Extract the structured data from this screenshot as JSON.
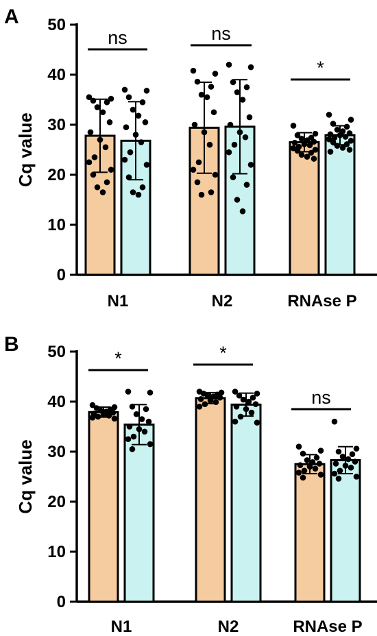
{
  "colors": {
    "group1": "#F5CBA0",
    "group2": "#C9F2F0",
    "ink": "#000000"
  },
  "chart_data": [
    {
      "type": "bar",
      "panel_label": "A",
      "ylabel": "Cq value",
      "ylim": [
        0,
        50
      ],
      "yticks": [
        "0",
        "10",
        "20",
        "30",
        "40",
        "50"
      ],
      "categories": [
        "N1",
        "N2",
        "RNAse P"
      ],
      "series": [
        {
          "values": [
            27.8,
            29.4,
            26.5
          ],
          "sd": [
            7.3,
            9.1,
            1.9
          ],
          "points": [
            [
              35.5,
              35.2,
              34.8,
              34.5,
              33.5,
              32.5,
              30.5,
              28.5,
              27.0,
              25.5,
              23.5,
              22.5,
              21.0,
              20.0,
              18.5,
              17.5,
              16.5
            ],
            [
              40.8,
              40.2,
              38.6,
              37.6,
              36.0,
              35.5,
              32.5,
              30.0,
              28.5,
              26.0,
              22.5,
              21.0,
              20.0,
              18.5,
              16.5,
              16.0
            ],
            [
              29.8,
              28.2,
              27.9,
              27.4,
              27.2,
              26.9,
              26.6,
              26.4,
              26.1,
              25.9,
              25.6,
              25.3,
              25.0,
              24.8,
              24.4,
              24.0,
              23.6,
              23.2
            ]
          ]
        },
        {
          "values": [
            26.8,
            29.6,
            27.9
          ],
          "sd": [
            7.8,
            9.4,
            1.9
          ],
          "points": [
            [
              37.0,
              36.8,
              35.5,
              34.5,
              33.0,
              31.8,
              30.5,
              29.5,
              28.0,
              26.5,
              24.5,
              23.0,
              22.0,
              19.5,
              17.5,
              16.5,
              16.0
            ],
            [
              42.0,
              41.5,
              38.5,
              37.5,
              36.5,
              35.0,
              31.5,
              30.0,
              28.5,
              27.5,
              26.0,
              24.5,
              22.0,
              19.5,
              18.0,
              15.0,
              12.7
            ],
            [
              32.0,
              31.0,
              30.2,
              29.6,
              29.0,
              28.7,
              28.3,
              28.1,
              27.9,
              27.6,
              27.4,
              27.1,
              26.8,
              26.5,
              26.1,
              25.8,
              25.4,
              25.0,
              24.6
            ]
          ]
        }
      ],
      "significance": [
        "ns",
        "ns",
        "*"
      ]
    },
    {
      "type": "bar",
      "panel_label": "B",
      "ylabel": "Cq value",
      "ylim": [
        0,
        50
      ],
      "yticks": [
        "0",
        "10",
        "20",
        "30",
        "40",
        "50"
      ],
      "categories": [
        "N1",
        "N2",
        "RNAse P"
      ],
      "series": [
        {
          "values": [
            37.9,
            40.7,
            27.5
          ],
          "sd": [
            1.0,
            1.1,
            1.9
          ],
          "points": [
            [
              39.3,
              38.9,
              38.7,
              38.4,
              38.2,
              38.0,
              37.8,
              37.6,
              37.4,
              37.2,
              37.0,
              36.8,
              36.6
            ],
            [
              42.0,
              41.8,
              41.6,
              41.4,
              41.2,
              41.0,
              40.8,
              40.5,
              40.2,
              39.9,
              39.5,
              39.0
            ],
            [
              31.0,
              30.2,
              29.6,
              28.8,
              28.3,
              27.9,
              27.6,
              27.3,
              27.0,
              26.6,
              26.2,
              25.8,
              25.4,
              24.8
            ]
          ]
        },
        {
          "values": [
            35.4,
            39.4,
            28.3
          ],
          "sd": [
            4.0,
            2.3,
            2.7
          ],
          "points": [
            [
              42.0,
              41.8,
              39.0,
              38.5,
              37.5,
              36.5,
              36.0,
              35.0,
              34.5,
              34.0,
              33.0,
              32.5,
              31.5,
              30.5
            ],
            [
              42.0,
              41.6,
              41.2,
              40.8,
              40.4,
              40.0,
              39.5,
              39.0,
              38.5,
              37.8,
              37.0,
              36.0,
              35.8
            ],
            [
              36.0,
              30.6,
              30.0,
              29.5,
              29.0,
              28.5,
              28.0,
              27.6,
              27.2,
              26.8,
              26.2,
              25.6,
              25.0,
              24.6
            ]
          ]
        }
      ],
      "significance": [
        "*",
        "*",
        "ns"
      ]
    }
  ]
}
